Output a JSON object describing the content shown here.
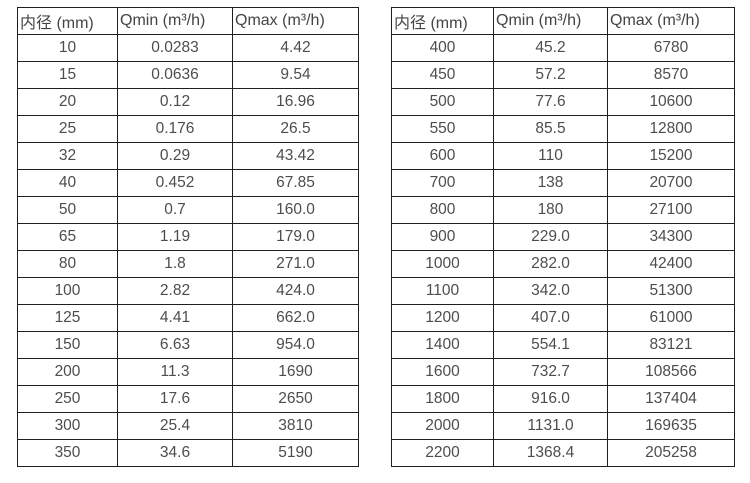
{
  "page": {
    "background": "#ffffff",
    "border_color": "#1f1f1f",
    "text_color": "#4d4d4d"
  },
  "chart_data": [
    {
      "type": "table",
      "title": "",
      "columns": [
        "内径 (mm)",
        "Qmin (m³/h)",
        "Qmax (m³/h)"
      ],
      "rows": [
        [
          "10",
          "0.0283",
          "4.42"
        ],
        [
          "15",
          "0.0636",
          "9.54"
        ],
        [
          "20",
          "0.12",
          "16.96"
        ],
        [
          "25",
          "0.176",
          "26.5"
        ],
        [
          "32",
          "0.29",
          "43.42"
        ],
        [
          "40",
          "0.452",
          "67.85"
        ],
        [
          "50",
          "0.7",
          "160.0"
        ],
        [
          "65",
          "1.19",
          "179.0"
        ],
        [
          "80",
          "1.8",
          "271.0"
        ],
        [
          "100",
          "2.82",
          "424.0"
        ],
        [
          "125",
          "4.41",
          "662.0"
        ],
        [
          "150",
          "6.63",
          "954.0"
        ],
        [
          "200",
          "11.3",
          "1690"
        ],
        [
          "250",
          "17.6",
          "2650"
        ],
        [
          "300",
          "25.4",
          "3810"
        ],
        [
          "350",
          "34.6",
          "5190"
        ]
      ]
    },
    {
      "type": "table",
      "title": "",
      "columns": [
        "内径 (mm)",
        "Qmin (m³/h)",
        "Qmax (m³/h)"
      ],
      "rows": [
        [
          "400",
          "45.2",
          "6780"
        ],
        [
          "450",
          "57.2",
          "8570"
        ],
        [
          "500",
          "77.6",
          "10600"
        ],
        [
          "550",
          "85.5",
          "12800"
        ],
        [
          "600",
          "110",
          "15200"
        ],
        [
          "700",
          "138",
          "20700"
        ],
        [
          "800",
          "180",
          "27100"
        ],
        [
          "900",
          "229.0",
          "34300"
        ],
        [
          "1000",
          "282.0",
          "42400"
        ],
        [
          "1100",
          "342.0",
          "51300"
        ],
        [
          "1200",
          "407.0",
          "61000"
        ],
        [
          "1400",
          "554.1",
          "83121"
        ],
        [
          "1600",
          "732.7",
          "108566"
        ],
        [
          "1800",
          "916.0",
          "137404"
        ],
        [
          "2000",
          "1131.0",
          "169635"
        ],
        [
          "2200",
          "1368.4",
          "205258"
        ]
      ]
    }
  ]
}
